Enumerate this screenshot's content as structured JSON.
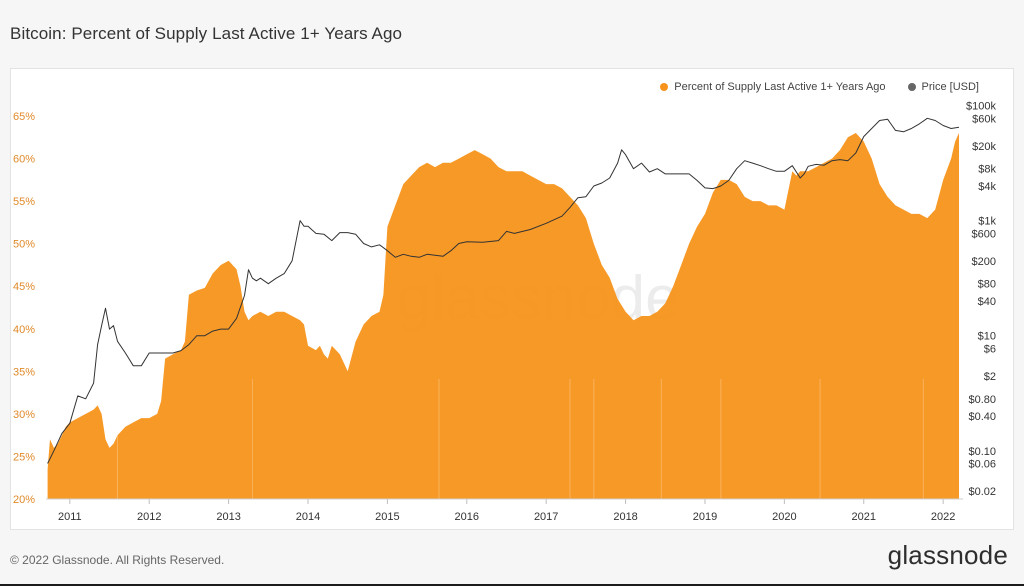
{
  "page": {
    "title": "Bitcoin: Percent of Supply Last Active 1+ Years Ago",
    "copyright": "© 2022 Glassnode. All Rights Reserved.",
    "logo": "glassnode",
    "watermark": "glassnode"
  },
  "colors": {
    "area": "#f7931a",
    "price_line": "#333333",
    "left_axis_text": "#e08a2a",
    "right_axis_text": "#333333",
    "background": "#f6f6f6",
    "panel": "#ffffff"
  },
  "legend": [
    {
      "label": "Percent of Supply Last Active 1+ Years Ago",
      "color": "#f7931a"
    },
    {
      "label": "Price [USD]",
      "color": "#666666"
    }
  ],
  "chart_data": {
    "type": "area",
    "title": "Bitcoin: Percent of Supply Last Active 1+ Years Ago",
    "grid": false,
    "legend_position": "top-right",
    "x_ticks": [
      "2011",
      "2012",
      "2013",
      "2014",
      "2015",
      "2016",
      "2017",
      "2018",
      "2019",
      "2020",
      "2021",
      "2022"
    ],
    "x_range": [
      2010.7,
      2022.25
    ],
    "y_left": {
      "ticks": [
        "20%",
        "25%",
        "30%",
        "35%",
        "40%",
        "45%",
        "50%",
        "55%",
        "60%",
        "65%"
      ],
      "range": [
        20,
        67
      ]
    },
    "y_right": {
      "scale": "log",
      "ticks": [
        {
          "label": "$0.02",
          "value": 0.02
        },
        {
          "label": "$0.06",
          "value": 0.06
        },
        {
          "label": "$0.10",
          "value": 0.1
        },
        {
          "label": "$0.40",
          "value": 0.4
        },
        {
          "label": "$0.80",
          "value": 0.8
        },
        {
          "label": "$2",
          "value": 2
        },
        {
          "label": "$6",
          "value": 6
        },
        {
          "label": "$10",
          "value": 10
        },
        {
          "label": "$40",
          "value": 40
        },
        {
          "label": "$80",
          "value": 80
        },
        {
          "label": "$200",
          "value": 200
        },
        {
          "label": "$600",
          "value": 600
        },
        {
          "label": "$1k",
          "value": 1000
        },
        {
          "label": "$4k",
          "value": 4000
        },
        {
          "label": "$8k",
          "value": 8000
        },
        {
          "label": "$20k",
          "value": 20000
        },
        {
          "label": "$60k",
          "value": 60000
        },
        {
          "label": "$100k",
          "value": 100000
        }
      ],
      "range": [
        0.0145,
        130000
      ]
    },
    "series": [
      {
        "name": "Percent of Supply Last Active 1+ Years Ago",
        "axis": "left",
        "x": [
          2010.72,
          2010.75,
          2010.8,
          2010.85,
          2010.9,
          2010.95,
          2011.0,
          2011.1,
          2011.2,
          2011.3,
          2011.35,
          2011.4,
          2011.45,
          2011.5,
          2011.55,
          2011.6,
          2011.7,
          2011.8,
          2011.9,
          2012.0,
          2012.1,
          2012.15,
          2012.2,
          2012.3,
          2012.4,
          2012.45,
          2012.5,
          2012.6,
          2012.7,
          2012.8,
          2012.9,
          2013.0,
          2013.1,
          2013.15,
          2013.2,
          2013.25,
          2013.3,
          2013.4,
          2013.5,
          2013.6,
          2013.7,
          2013.8,
          2013.9,
          2013.95,
          2014.0,
          2014.1,
          2014.15,
          2014.2,
          2014.25,
          2014.3,
          2014.4,
          2014.5,
          2014.6,
          2014.7,
          2014.8,
          2014.9,
          2014.95,
          2015.0,
          2015.1,
          2015.2,
          2015.3,
          2015.4,
          2015.5,
          2015.6,
          2015.7,
          2015.8,
          2015.9,
          2016.0,
          2016.1,
          2016.2,
          2016.3,
          2016.4,
          2016.5,
          2016.6,
          2016.7,
          2016.8,
          2016.9,
          2017.0,
          2017.1,
          2017.2,
          2017.3,
          2017.4,
          2017.5,
          2017.6,
          2017.7,
          2017.8,
          2017.9,
          2018.0,
          2018.1,
          2018.2,
          2018.3,
          2018.4,
          2018.5,
          2018.6,
          2018.7,
          2018.8,
          2018.9,
          2019.0,
          2019.1,
          2019.2,
          2019.3,
          2019.4,
          2019.5,
          2019.6,
          2019.7,
          2019.8,
          2019.9,
          2020.0,
          2020.1,
          2020.15,
          2020.2,
          2020.3,
          2020.4,
          2020.5,
          2020.6,
          2020.7,
          2020.8,
          2020.9,
          2021.0,
          2021.1,
          2021.2,
          2021.3,
          2021.4,
          2021.5,
          2021.6,
          2021.7,
          2021.8,
          2021.9,
          2022.0,
          2022.1,
          2022.15,
          2022.2
        ],
        "y": [
          23.5,
          27.0,
          26.0,
          26.5,
          27.5,
          28.5,
          29.0,
          29.5,
          30.0,
          30.5,
          31.0,
          30.0,
          27.0,
          26.0,
          26.5,
          27.5,
          28.5,
          29.0,
          29.5,
          29.5,
          30.0,
          31.5,
          36.5,
          37.0,
          37.5,
          38.5,
          44.0,
          44.5,
          44.8,
          46.5,
          47.5,
          48.0,
          47.0,
          45.0,
          42.0,
          41.0,
          41.5,
          42.0,
          41.5,
          42.0,
          42.0,
          41.5,
          41.0,
          40.5,
          38.0,
          37.5,
          38.0,
          37.0,
          36.5,
          38.0,
          37.0,
          35.0,
          38.5,
          40.5,
          41.5,
          42.0,
          44.0,
          52.0,
          54.5,
          57.0,
          58.0,
          59.0,
          59.5,
          59.0,
          59.5,
          59.5,
          60.0,
          60.5,
          61.0,
          60.5,
          60.0,
          59.0,
          58.5,
          58.5,
          58.5,
          58.0,
          57.5,
          57.0,
          57.0,
          56.5,
          55.5,
          54.5,
          53.0,
          50.0,
          47.5,
          46.0,
          43.5,
          42.0,
          41.0,
          41.5,
          41.5,
          42.0,
          43.0,
          45.0,
          47.5,
          50.0,
          52.0,
          53.5,
          56.0,
          57.5,
          57.5,
          57.0,
          55.5,
          55.0,
          55.0,
          54.5,
          54.5,
          54.0,
          58.5,
          58.0,
          58.5,
          58.5,
          59.0,
          59.5,
          60.0,
          61.0,
          62.5,
          63.0,
          62.0,
          60.0,
          57.0,
          55.5,
          54.5,
          54.0,
          53.5,
          53.5,
          53.0,
          54.0,
          57.5,
          60.0,
          62.0,
          63.0
        ]
      },
      {
        "name": "Price [USD]",
        "axis": "right",
        "x": [
          2010.72,
          2010.8,
          2010.9,
          2011.0,
          2011.1,
          2011.2,
          2011.3,
          2011.35,
          2011.4,
          2011.45,
          2011.5,
          2011.55,
          2011.6,
          2011.7,
          2011.8,
          2011.9,
          2012.0,
          2012.1,
          2012.2,
          2012.3,
          2012.4,
          2012.5,
          2012.6,
          2012.7,
          2012.8,
          2012.9,
          2013.0,
          2013.1,
          2013.2,
          2013.25,
          2013.3,
          2013.35,
          2013.4,
          2013.5,
          2013.6,
          2013.7,
          2013.8,
          2013.9,
          2013.95,
          2014.0,
          2014.1,
          2014.2,
          2014.3,
          2014.4,
          2014.5,
          2014.6,
          2014.7,
          2014.8,
          2014.9,
          2015.0,
          2015.1,
          2015.2,
          2015.3,
          2015.4,
          2015.5,
          2015.6,
          2015.7,
          2015.8,
          2015.9,
          2016.0,
          2016.2,
          2016.4,
          2016.5,
          2016.6,
          2016.8,
          2017.0,
          2017.2,
          2017.3,
          2017.4,
          2017.5,
          2017.6,
          2017.7,
          2017.8,
          2017.9,
          2017.95,
          2018.0,
          2018.1,
          2018.2,
          2018.3,
          2018.4,
          2018.5,
          2018.6,
          2018.7,
          2018.8,
          2018.9,
          2019.0,
          2019.1,
          2019.2,
          2019.3,
          2019.4,
          2019.5,
          2019.6,
          2019.7,
          2019.8,
          2019.9,
          2020.0,
          2020.1,
          2020.2,
          2020.25,
          2020.3,
          2020.4,
          2020.5,
          2020.6,
          2020.7,
          2020.8,
          2020.9,
          2021.0,
          2021.1,
          2021.2,
          2021.3,
          2021.4,
          2021.5,
          2021.6,
          2021.7,
          2021.8,
          2021.9,
          2022.0,
          2022.1,
          2022.2
        ],
        "y": [
          0.06,
          0.1,
          0.2,
          0.3,
          0.9,
          0.8,
          1.5,
          7,
          15,
          30,
          13,
          15,
          8,
          5,
          3,
          3,
          5,
          5,
          5,
          5,
          5.5,
          7,
          10,
          10,
          12,
          13,
          13,
          20,
          50,
          140,
          100,
          90,
          100,
          80,
          100,
          120,
          200,
          1000,
          800,
          800,
          600,
          580,
          450,
          620,
          620,
          580,
          400,
          350,
          380,
          300,
          230,
          260,
          240,
          230,
          260,
          250,
          240,
          300,
          400,
          430,
          420,
          450,
          650,
          600,
          700,
          900,
          1200,
          1700,
          2500,
          2600,
          4000,
          4500,
          5500,
          10000,
          17000,
          14000,
          8000,
          10000,
          7000,
          8000,
          6500,
          6500,
          6500,
          6500,
          5000,
          3700,
          3600,
          4000,
          5000,
          8000,
          11000,
          10000,
          9000,
          8000,
          7200,
          7200,
          9000,
          5500,
          6500,
          8800,
          9500,
          9200,
          11000,
          11500,
          11000,
          15000,
          29000,
          40000,
          55000,
          58000,
          37000,
          35000,
          40000,
          48000,
          60000,
          55000,
          45000,
          40000,
          42000
        ]
      }
    ]
  }
}
